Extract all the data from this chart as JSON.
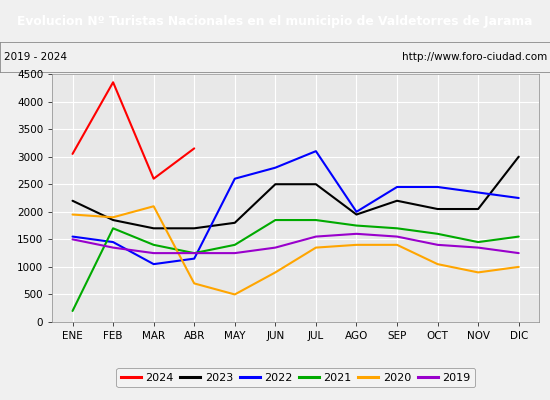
{
  "title": "Evolucion Nº Turistas Nacionales en el municipio de Valdetorres de Jarama",
  "subtitle_left": "2019 - 2024",
  "subtitle_right": "http://www.foro-ciudad.com",
  "title_bgcolor": "#4472c4",
  "title_color": "#ffffff",
  "months": [
    "ENE",
    "FEB",
    "MAR",
    "ABR",
    "MAY",
    "JUN",
    "JUL",
    "AGO",
    "SEP",
    "OCT",
    "NOV",
    "DIC"
  ],
  "ylim": [
    0,
    4500
  ],
  "yticks": [
    0,
    500,
    1000,
    1500,
    2000,
    2500,
    3000,
    3500,
    4000,
    4500
  ],
  "series": {
    "2024": {
      "color": "#ff0000",
      "values": [
        3050,
        4350,
        2600,
        3150,
        null,
        null,
        null,
        null,
        null,
        null,
        null,
        null
      ]
    },
    "2023": {
      "color": "#000000",
      "values": [
        2200,
        1850,
        1700,
        1700,
        1800,
        2500,
        2500,
        1950,
        2200,
        2050,
        2050,
        3000
      ]
    },
    "2022": {
      "color": "#0000ff",
      "values": [
        1550,
        1450,
        1050,
        1150,
        2600,
        2800,
        3100,
        2000,
        2450,
        2450,
        2350,
        2250
      ]
    },
    "2021": {
      "color": "#00aa00",
      "values": [
        200,
        1700,
        1400,
        1250,
        1400,
        1850,
        1850,
        1750,
        1700,
        1600,
        1450,
        1550
      ]
    },
    "2020": {
      "color": "#ffa500",
      "values": [
        1950,
        1900,
        2100,
        700,
        500,
        900,
        1350,
        1400,
        1400,
        1050,
        900,
        1000
      ]
    },
    "2019": {
      "color": "#9900cc",
      "values": [
        1500,
        1350,
        1250,
        1250,
        1250,
        1350,
        1550,
        1600,
        1550,
        1400,
        1350,
        1250
      ]
    }
  },
  "legend_order": [
    "2024",
    "2023",
    "2022",
    "2021",
    "2020",
    "2019"
  ],
  "plot_bgcolor": "#e8e8e8",
  "grid_color": "#ffffff",
  "fig_bgcolor": "#f0f0f0"
}
